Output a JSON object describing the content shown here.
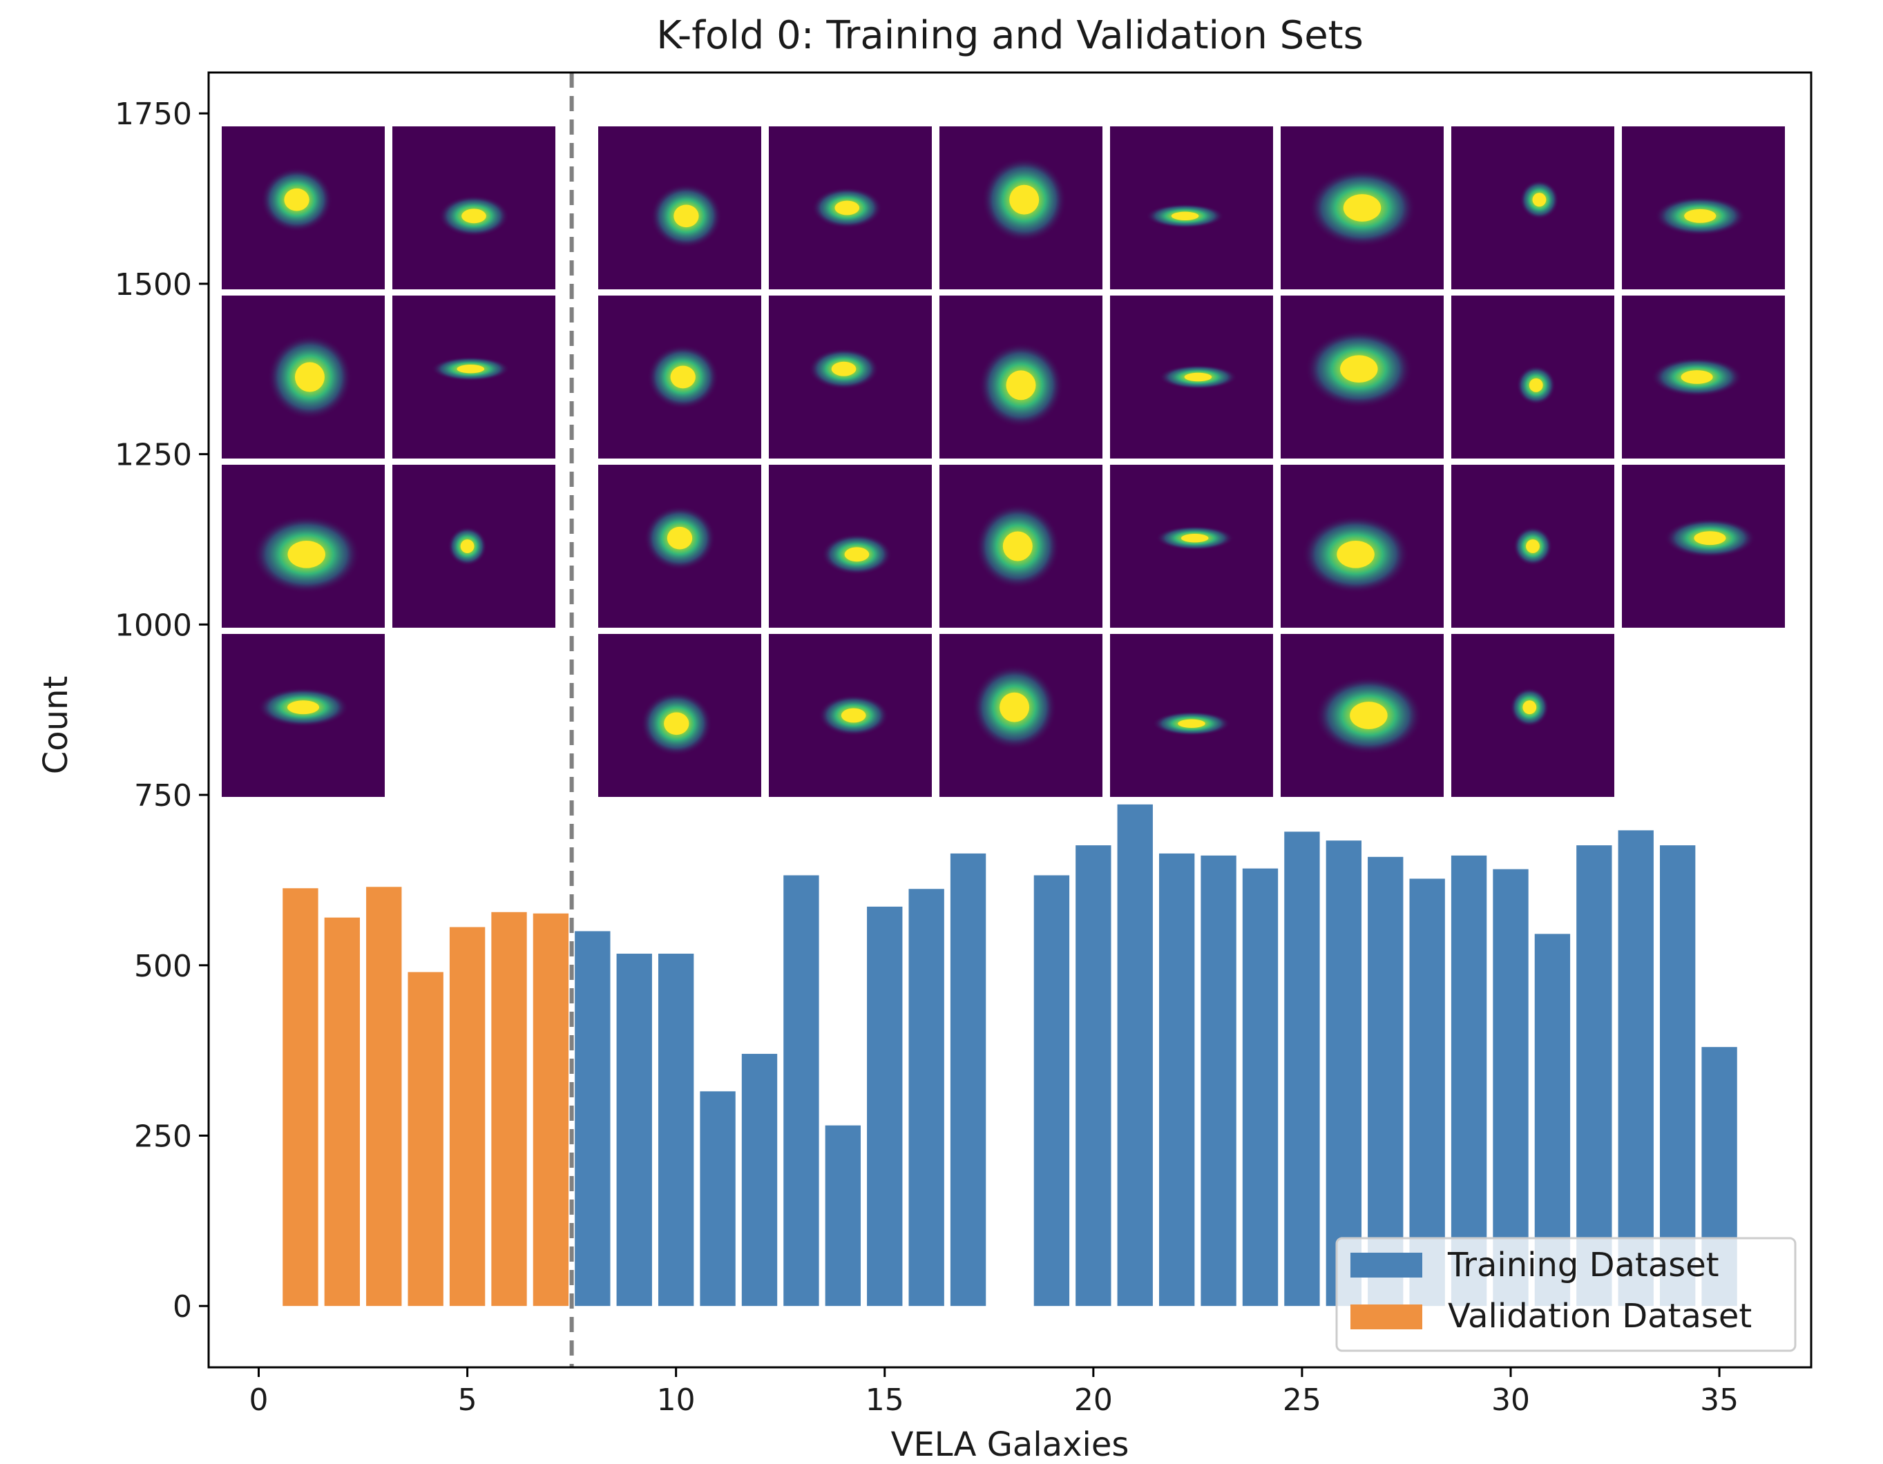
{
  "chart_data": {
    "type": "bar",
    "title": "K-fold 0: Training and Validation Sets",
    "xlabel": "VELA Galaxies",
    "ylabel": "Count",
    "xlim": [
      -1.2,
      37.2
    ],
    "ylim": [
      -90,
      1810
    ],
    "xticks": [
      0,
      5,
      10,
      15,
      20,
      25,
      30,
      35
    ],
    "yticks": [
      0,
      250,
      500,
      750,
      1000,
      1250,
      1500,
      1750
    ],
    "split_line_x": 7.5,
    "colors": {
      "training": "#4a82b6",
      "validation": "#ef9140",
      "split_line": "#808080",
      "thumbnail_bg": "#440154"
    },
    "series": [
      {
        "name": "Validation Dataset",
        "color": "#ef9140",
        "x": [
          1,
          2,
          3,
          4,
          5,
          6,
          7
        ],
        "values": [
          613,
          570,
          615,
          490,
          556,
          578,
          576
        ]
      },
      {
        "name": "Training Dataset",
        "color": "#4a82b6",
        "x": [
          8,
          9,
          10,
          11,
          12,
          13,
          14,
          15,
          16,
          17,
          19,
          20,
          21,
          22,
          23,
          24,
          25,
          26,
          27,
          28,
          29,
          30,
          31,
          32,
          33,
          34,
          35
        ],
        "values": [
          550,
          517,
          517,
          315,
          370,
          632,
          265,
          586,
          612,
          664,
          632,
          676,
          736,
          664,
          661,
          642,
          696,
          683,
          659,
          627,
          661,
          641,
          546,
          676,
          698,
          676,
          380
        ]
      }
    ],
    "legend": {
      "position": "lower-right",
      "entries": [
        "Training Dataset",
        "Validation Dataset"
      ]
    },
    "thumbnails": {
      "validation_count": 7,
      "training_count": 27
    }
  }
}
